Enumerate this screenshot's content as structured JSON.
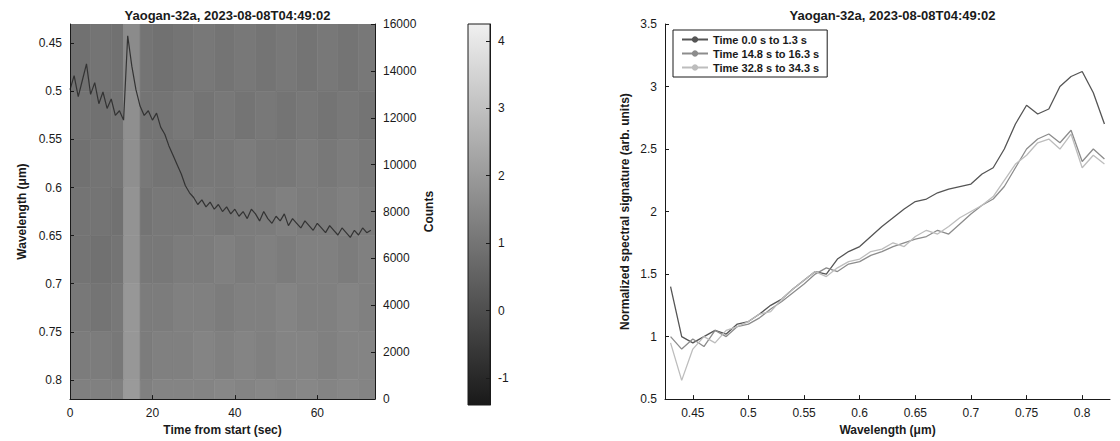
{
  "chart_data": [
    {
      "type": "heatmap",
      "title": "Yaogan-32a, 2023-08-08T04:49:02",
      "xlabel": "Time from start (sec)",
      "ylabel": "Wavelength (μm)",
      "y2label": "Counts",
      "xlim": [
        0,
        74
      ],
      "xticks": [
        0,
        20,
        40,
        60
      ],
      "ylim": [
        0.82,
        0.43
      ],
      "yticks": [
        0.45,
        0.5,
        0.55,
        0.6,
        0.65,
        0.7,
        0.75,
        0.8
      ],
      "y2lim": [
        0,
        16000
      ],
      "y2ticks": [
        0,
        2000,
        4000,
        6000,
        8000,
        10000,
        12000,
        14000,
        16000
      ],
      "grid": false,
      "cells": {
        "x_edges": [
          0,
          5,
          10,
          13,
          17,
          20,
          25,
          30,
          35,
          40,
          45,
          50,
          55,
          60,
          65,
          70,
          74
        ],
        "y_edges": [
          0.43,
          0.5,
          0.55,
          0.6,
          0.65,
          0.7,
          0.75,
          0.8,
          0.82
        ],
        "values": [
          [
            0.9,
            1.0,
            0.9,
            1.6,
            1.0,
            0.9,
            1.0,
            1.1,
            1.0,
            1.1,
            1.0,
            1.1,
            1.0,
            1.1,
            1.0,
            1.1
          ],
          [
            1.0,
            0.9,
            1.0,
            1.7,
            1.0,
            1.0,
            1.1,
            1.0,
            1.1,
            1.0,
            1.1,
            1.0,
            1.1,
            1.0,
            1.1,
            1.0
          ],
          [
            0.9,
            1.0,
            1.0,
            1.7,
            1.1,
            1.0,
            1.0,
            1.1,
            1.1,
            1.2,
            1.1,
            1.1,
            1.2,
            1.1,
            1.2,
            1.1
          ],
          [
            1.0,
            1.0,
            0.9,
            1.8,
            1.0,
            1.1,
            1.1,
            1.2,
            1.1,
            1.2,
            1.2,
            1.3,
            1.2,
            1.2,
            1.3,
            1.2
          ],
          [
            1.0,
            0.9,
            1.0,
            1.8,
            1.1,
            1.1,
            1.2,
            1.2,
            1.3,
            1.2,
            1.3,
            1.2,
            1.3,
            1.3,
            1.2,
            1.3
          ],
          [
            1.1,
            1.0,
            1.1,
            1.9,
            1.2,
            1.2,
            1.3,
            1.3,
            1.2,
            1.3,
            1.3,
            1.4,
            1.3,
            1.3,
            1.4,
            1.3
          ],
          [
            1.2,
            1.2,
            1.1,
            1.9,
            1.2,
            1.3,
            1.3,
            1.4,
            1.3,
            1.4,
            1.3,
            1.4,
            1.4,
            1.3,
            1.4,
            1.4
          ],
          [
            1.3,
            1.3,
            1.3,
            2.0,
            1.3,
            1.4,
            1.4,
            1.4,
            1.5,
            1.4,
            1.5,
            1.4,
            1.5,
            1.4,
            1.5,
            1.4
          ]
        ]
      },
      "colorbar": {
        "range": [
          -1.4,
          4.25
        ],
        "ticks": [
          -1,
          0,
          1,
          2,
          3,
          4
        ]
      },
      "series": [
        {
          "type": "line",
          "axis": "y2",
          "color": "#333333",
          "x": [
            0,
            1,
            2,
            3,
            4,
            5,
            6,
            7,
            8,
            9,
            10,
            11,
            12,
            13,
            14,
            15,
            16,
            17,
            18,
            19,
            20,
            21,
            22,
            23,
            24,
            25,
            26,
            27,
            28,
            29,
            30,
            31,
            32,
            33,
            34,
            35,
            36,
            37,
            38,
            39,
            40,
            41,
            42,
            43,
            44,
            45,
            46,
            47,
            48,
            49,
            50,
            51,
            52,
            53,
            54,
            55,
            56,
            57,
            58,
            59,
            60,
            61,
            62,
            63,
            64,
            65,
            66,
            67,
            68,
            69,
            70,
            71,
            72,
            73
          ],
          "values": [
            13200,
            13800,
            12900,
            13600,
            14300,
            13000,
            13500,
            12600,
            13100,
            12400,
            12800,
            12100,
            12300,
            11900,
            15500,
            14200,
            13200,
            12500,
            12100,
            12300,
            11900,
            12200,
            11600,
            11300,
            10800,
            10400,
            10000,
            9600,
            9100,
            8800,
            8600,
            8300,
            8500,
            8200,
            8400,
            8100,
            8300,
            8000,
            8200,
            7900,
            8100,
            7800,
            8000,
            7700,
            8100,
            7900,
            7600,
            8000,
            7700,
            7500,
            7800,
            7600,
            7900,
            7400,
            7700,
            7500,
            7300,
            7600,
            7400,
            7200,
            7500,
            7300,
            7100,
            7400,
            7200,
            7000,
            7300,
            7100,
            6900,
            7200,
            7000,
            7300,
            7100,
            7200
          ]
        }
      ]
    },
    {
      "type": "line",
      "title": "Yaogan-32a, 2023-08-08T04:49:02",
      "xlabel": "Wavelength (μm)",
      "ylabel": "Normalized spectral signature (arb. units)",
      "xlim": [
        0.425,
        0.825
      ],
      "xticks": [
        0.45,
        0.5,
        0.55,
        0.6,
        0.65,
        0.7,
        0.75,
        0.8
      ],
      "ylim": [
        0.5,
        3.5
      ],
      "yticks": [
        0.5,
        1,
        1.5,
        2,
        2.5,
        3,
        3.5
      ],
      "grid": false,
      "legend": "upper left",
      "x": [
        0.43,
        0.44,
        0.45,
        0.46,
        0.47,
        0.48,
        0.49,
        0.5,
        0.51,
        0.52,
        0.53,
        0.54,
        0.55,
        0.56,
        0.57,
        0.58,
        0.59,
        0.6,
        0.61,
        0.62,
        0.63,
        0.64,
        0.65,
        0.66,
        0.67,
        0.68,
        0.69,
        0.7,
        0.71,
        0.72,
        0.73,
        0.74,
        0.75,
        0.76,
        0.77,
        0.78,
        0.79,
        0.8,
        0.81,
        0.82
      ],
      "series": [
        {
          "name": "Time 0.0 s to 1.3 s",
          "color": "#555555",
          "values": [
            1.4,
            1.0,
            0.95,
            1.0,
            1.05,
            1.02,
            1.1,
            1.12,
            1.18,
            1.25,
            1.3,
            1.38,
            1.45,
            1.52,
            1.5,
            1.62,
            1.68,
            1.72,
            1.8,
            1.88,
            1.95,
            2.02,
            2.08,
            2.1,
            2.15,
            2.18,
            2.2,
            2.22,
            2.3,
            2.35,
            2.5,
            2.7,
            2.85,
            2.78,
            2.82,
            3.0,
            3.08,
            3.12,
            2.95,
            2.7
          ]
        },
        {
          "name": "Time 14.8 s to 16.3 s",
          "color": "#8c8c8c",
          "values": [
            1.0,
            0.9,
            0.98,
            0.92,
            1.05,
            1.0,
            1.08,
            1.1,
            1.15,
            1.22,
            1.28,
            1.35,
            1.42,
            1.5,
            1.55,
            1.52,
            1.58,
            1.6,
            1.65,
            1.68,
            1.72,
            1.75,
            1.78,
            1.8,
            1.85,
            1.82,
            1.9,
            1.98,
            2.05,
            2.1,
            2.2,
            2.35,
            2.5,
            2.58,
            2.62,
            2.55,
            2.65,
            2.4,
            2.5,
            2.42
          ]
        },
        {
          "name": "Time 32.8 s to 34.3 s",
          "color": "#bdbdbd",
          "values": [
            0.95,
            0.65,
            0.9,
            1.0,
            0.95,
            1.05,
            1.08,
            1.12,
            1.18,
            1.2,
            1.3,
            1.38,
            1.45,
            1.52,
            1.48,
            1.55,
            1.6,
            1.62,
            1.68,
            1.7,
            1.75,
            1.72,
            1.8,
            1.85,
            1.82,
            1.88,
            1.95,
            2.0,
            2.05,
            2.12,
            2.25,
            2.38,
            2.45,
            2.55,
            2.58,
            2.5,
            2.62,
            2.35,
            2.45,
            2.38
          ]
        }
      ]
    }
  ]
}
